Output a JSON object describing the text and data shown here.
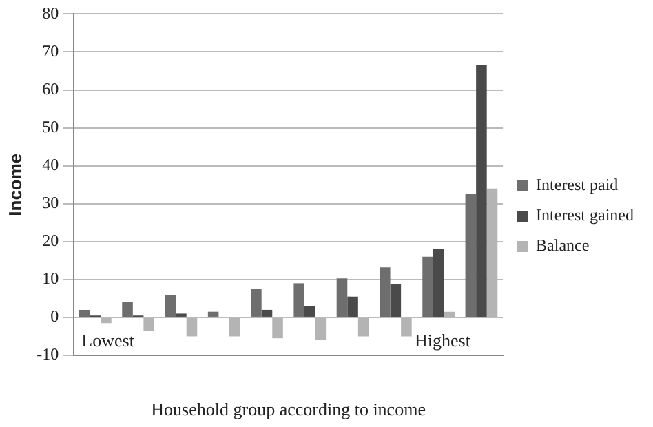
{
  "chart_data": {
    "type": "bar",
    "xlabel": "Household group according to income",
    "ylabel": "Income",
    "categories": [
      null,
      null,
      null,
      null,
      null,
      null,
      null,
      null,
      null,
      null
    ],
    "series": [
      {
        "name": "Interest paid",
        "color": "#6e6e6e",
        "values": [
          2,
          4,
          6,
          1.5,
          7.5,
          9,
          10.3,
          13.2,
          16,
          32.5
        ]
      },
      {
        "name": "Interest gained",
        "color": "#4a4a4a",
        "values": [
          0.5,
          0.5,
          1,
          0,
          2,
          3,
          5.5,
          8.9,
          18,
          66.5
        ]
      },
      {
        "name": "Balance",
        "color": "#b4b4b4",
        "values": [
          -1.5,
          -3.5,
          -5,
          -5,
          -5.5,
          -6,
          -5,
          -5,
          1.5,
          34
        ]
      }
    ],
    "ylim": [
      -10,
      80
    ],
    "yticks": [
      -10,
      0,
      10,
      20,
      30,
      40,
      50,
      60,
      70,
      80
    ],
    "grid": "y",
    "legend": "right",
    "annotations": [
      "Lowest",
      "Highest"
    ]
  }
}
